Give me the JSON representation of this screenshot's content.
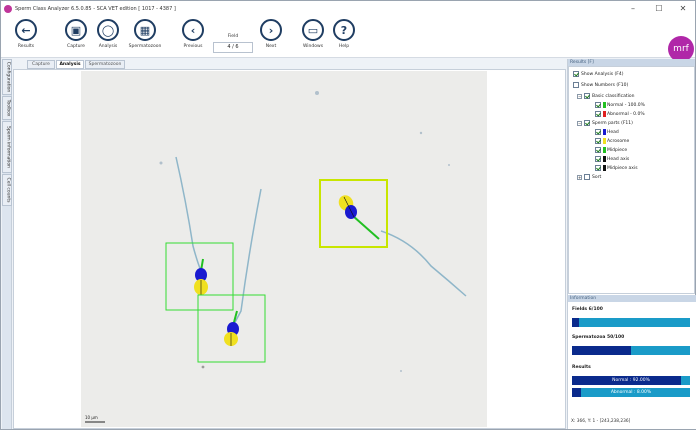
{
  "titlebar": {
    "title": "Sperm Class Analyzer 6.5.0.85 - SCA VET edition [ 1017 - 4387 ]",
    "minimize": "–",
    "maximize": "☐",
    "close": "✕"
  },
  "toolbar": {
    "results_label": "Results",
    "capture_label": "Capture",
    "analysis_label": "Analysis",
    "spermatozoon_label": "Spermatozoon",
    "previous_label": "Previous",
    "field_label": "Field",
    "field_value": "4 / 6",
    "next_label": "Next",
    "windows_label": "Windows",
    "help_label": "Help",
    "avatar_text": "mrf"
  },
  "side_tabs": [
    "Configuration",
    "Toolbox",
    "Sperm information",
    "Cell counts"
  ],
  "content_tabs": [
    "Capture",
    "Analysis",
    "Spermatozoon"
  ],
  "active_content_tab": "Analysis",
  "scale_bar_label": "10 µm",
  "results_panel": {
    "header": "Results [F]",
    "show_analysis": "Show Analysis (F4)",
    "show_numbers": "Show Numbers (F10)",
    "basic_classification": "Basic classification",
    "normal": "Normal - 100.0%",
    "abnormal": "Abnormal - 0.0%",
    "sperm_parts": "Sperm parts (F11)",
    "head": "Head",
    "acrosome": "Acrosome",
    "midpiece": "Midpiece",
    "head_axis": "Head axis",
    "midpiece_axis": "Midpiece axis",
    "sort": "Sort"
  },
  "colors": {
    "normal": "#22c022",
    "abnormal": "#e02020",
    "head": "#1a1ad0",
    "acrosome": "#f0e020",
    "midpiece": "#22c022",
    "head_axis": "#111111",
    "midpiece_axis": "#111111",
    "box_normal": "#33dd33",
    "box_selected": "#c8e600"
  },
  "information_panel": {
    "header": "Information",
    "fields_label": "Fields 6/100",
    "fields_progress": 0.06,
    "spermatozoa_label": "Spermatozoa 50/100",
    "spermatozoa_progress": 0.5,
    "results_label": "Results",
    "normal_bar": "Normal : 92.00%",
    "normal_progress": 0.92,
    "abnormal_bar": "Abnormal : 8.00%",
    "abnormal_progress": 0.08,
    "coords": "X: 366, Y: 1 - [243,238,236]"
  }
}
